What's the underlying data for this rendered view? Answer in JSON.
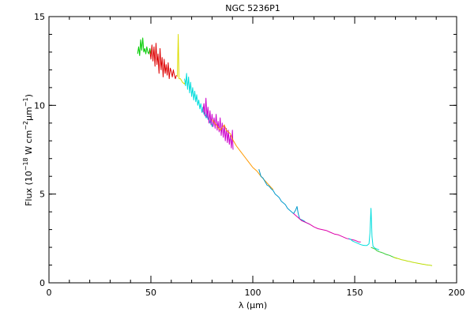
{
  "chart_data": {
    "type": "line",
    "title": "NGC 5236P1",
    "xlabel": "λ (μm)",
    "ylabel": {
      "prefix": "Flux (10",
      "exp1": "−18",
      "mid": " W cm",
      "exp2": "−2",
      "mid2": "μm",
      "exp3": "−1",
      "suffix": ")"
    },
    "xlim": [
      0,
      200
    ],
    "ylim": [
      0,
      15
    ],
    "x_ticks": [
      0,
      50,
      100,
      150,
      200
    ],
    "y_ticks": [
      0,
      5,
      10,
      15
    ],
    "x_minor_step": 10,
    "y_minor_step": 1,
    "grid": false,
    "series": [
      {
        "color": "#00cc00",
        "points": [
          [
            43.5,
            12.9
          ],
          [
            44.0,
            13.3
          ],
          [
            44.5,
            12.8
          ],
          [
            45.0,
            13.7
          ],
          [
            45.5,
            13.1
          ],
          [
            46.0,
            13.8
          ],
          [
            46.5,
            13.0
          ],
          [
            47.0,
            13.2
          ],
          [
            47.5,
            12.9
          ],
          [
            48.0,
            13.3
          ],
          [
            48.5,
            13.0
          ],
          [
            49.0,
            12.9
          ],
          [
            49.5,
            13.2
          ],
          [
            50.0,
            12.9
          ]
        ]
      },
      {
        "color": "#dd0000",
        "points": [
          [
            49.5,
            13.1
          ],
          [
            50.0,
            12.6
          ],
          [
            50.5,
            13.4
          ],
          [
            51.0,
            12.5
          ],
          [
            51.5,
            13.3
          ],
          [
            52.0,
            12.2
          ],
          [
            52.5,
            13.5
          ],
          [
            53.0,
            12.3
          ],
          [
            53.5,
            12.9
          ],
          [
            54.0,
            11.8
          ],
          [
            54.5,
            13.2
          ],
          [
            55.0,
            12.0
          ],
          [
            55.5,
            12.7
          ],
          [
            56.0,
            11.6
          ],
          [
            56.5,
            12.6
          ],
          [
            57.0,
            11.8
          ],
          [
            57.5,
            12.3
          ],
          [
            58.0,
            11.7
          ],
          [
            58.5,
            12.4
          ],
          [
            59.0,
            11.5
          ],
          [
            59.5,
            12.1
          ],
          [
            60.0,
            11.9
          ],
          [
            60.5,
            11.6
          ],
          [
            61.0,
            12.0
          ],
          [
            61.5,
            11.7
          ],
          [
            62.0,
            11.5
          ],
          [
            62.5,
            11.7
          ]
        ]
      },
      {
        "color": "#dddd00",
        "points": [
          [
            63.0,
            11.6
          ],
          [
            63.4,
            14.0
          ],
          [
            63.8,
            11.5
          ],
          [
            64.5,
            11.5
          ],
          [
            65.5,
            11.3
          ],
          [
            66.5,
            11.2
          ],
          [
            67.0,
            11.4
          ]
        ]
      },
      {
        "color": "#00dddd",
        "points": [
          [
            66.5,
            11.5
          ],
          [
            67.0,
            11.1
          ],
          [
            67.5,
            11.8
          ],
          [
            68.0,
            10.9
          ],
          [
            68.5,
            11.6
          ],
          [
            69.0,
            10.7
          ],
          [
            69.5,
            11.3
          ],
          [
            70.0,
            10.5
          ],
          [
            70.5,
            11.0
          ],
          [
            71.0,
            10.3
          ],
          [
            71.5,
            10.8
          ],
          [
            72.0,
            10.2
          ],
          [
            72.5,
            10.6
          ],
          [
            73.0,
            10.0
          ],
          [
            73.5,
            10.3
          ],
          [
            74.0,
            9.8
          ],
          [
            74.5,
            10.1
          ],
          [
            75.0,
            9.6
          ],
          [
            75.5,
            9.9
          ],
          [
            76.0,
            9.5
          ],
          [
            76.5,
            9.7
          ],
          [
            77.0,
            9.3
          ],
          [
            77.5,
            9.6
          ],
          [
            78.0,
            9.2
          ],
          [
            78.5,
            9.3
          ],
          [
            79.0,
            9.0
          ],
          [
            79.5,
            9.2
          ],
          [
            80.0,
            8.8
          ],
          [
            80.5,
            9.0
          ]
        ]
      },
      {
        "color": "#cc00cc",
        "points": [
          [
            75.5,
            9.6
          ],
          [
            76.0,
            10.1
          ],
          [
            76.5,
            9.4
          ],
          [
            77.0,
            10.4
          ],
          [
            77.5,
            9.3
          ],
          [
            78.0,
            9.9
          ],
          [
            78.5,
            9.0
          ],
          [
            79.0,
            9.7
          ],
          [
            79.5,
            8.9
          ],
          [
            80.0,
            9.5
          ],
          [
            80.5,
            8.8
          ],
          [
            81.0,
            9.3
          ],
          [
            81.5,
            8.7
          ],
          [
            82.0,
            9.5
          ],
          [
            82.5,
            8.6
          ],
          [
            83.0,
            9.1
          ],
          [
            83.5,
            8.5
          ],
          [
            84.0,
            9.3
          ],
          [
            84.5,
            8.3
          ],
          [
            85.0,
            9.0
          ],
          [
            85.5,
            8.2
          ],
          [
            86.0,
            8.9
          ],
          [
            86.5,
            8.0
          ],
          [
            87.0,
            8.7
          ],
          [
            87.5,
            7.9
          ],
          [
            88.0,
            8.6
          ],
          [
            88.5,
            7.8
          ],
          [
            89.0,
            8.3
          ],
          [
            89.5,
            7.6
          ],
          [
            90.0,
            8.6
          ],
          [
            90.3,
            7.5
          ]
        ]
      },
      {
        "color": "#ff9900",
        "points": [
          [
            80.0,
            9.2
          ],
          [
            82.0,
            8.9
          ],
          [
            84.0,
            8.6
          ],
          [
            86.0,
            8.9
          ],
          [
            87.0,
            8.6
          ],
          [
            89.0,
            8.4
          ],
          [
            90.0,
            8.1
          ],
          [
            92.0,
            7.7
          ],
          [
            94.0,
            7.4
          ],
          [
            96.0,
            7.1
          ],
          [
            98.0,
            6.8
          ],
          [
            100.0,
            6.5
          ],
          [
            102.0,
            6.3
          ],
          [
            104.0,
            6.0
          ],
          [
            106.0,
            5.75
          ],
          [
            108.0,
            5.5
          ],
          [
            110.0,
            5.25
          ]
        ]
      },
      {
        "color": "#0099cc",
        "points": [
          [
            103.0,
            6.4
          ],
          [
            104.0,
            6.0
          ],
          [
            105.0,
            5.9
          ],
          [
            106.0,
            5.7
          ],
          [
            107.0,
            5.5
          ],
          [
            108.0,
            5.45
          ],
          [
            109.0,
            5.3
          ],
          [
            110.0,
            5.2
          ],
          [
            111.0,
            5.0
          ],
          [
            112.0,
            4.9
          ],
          [
            113.0,
            4.8
          ],
          [
            114.0,
            4.6
          ],
          [
            115.0,
            4.5
          ],
          [
            116.0,
            4.4
          ],
          [
            117.0,
            4.2
          ],
          [
            118.0,
            4.1
          ],
          [
            119.0,
            4.0
          ],
          [
            120.0,
            3.9
          ],
          [
            121.0,
            4.1
          ],
          [
            121.7,
            4.3
          ],
          [
            122.3,
            3.9
          ],
          [
            123.0,
            3.6
          ],
          [
            124.0,
            3.55
          ],
          [
            125.0,
            3.5
          ],
          [
            126.0,
            3.4
          ],
          [
            127.0,
            3.35
          ],
          [
            128.0,
            3.3
          ]
        ]
      },
      {
        "color": "#dd00aa",
        "points": [
          [
            120.0,
            3.9
          ],
          [
            122.0,
            3.7
          ],
          [
            124.0,
            3.5
          ],
          [
            126.0,
            3.4
          ],
          [
            128.0,
            3.3
          ],
          [
            130.0,
            3.15
          ],
          [
            132.0,
            3.05
          ],
          [
            134.0,
            3.0
          ],
          [
            136.0,
            2.95
          ],
          [
            138.0,
            2.85
          ],
          [
            140.0,
            2.75
          ],
          [
            142.0,
            2.7
          ],
          [
            144.0,
            2.6
          ],
          [
            146.0,
            2.5
          ],
          [
            148.0,
            2.45
          ],
          [
            150.0,
            2.4
          ],
          [
            152.0,
            2.3
          ],
          [
            153.0,
            2.3
          ]
        ]
      },
      {
        "color": "#00dddd",
        "points": [
          [
            147.0,
            2.5
          ],
          [
            148.0,
            2.45
          ],
          [
            149.0,
            2.35
          ],
          [
            150.0,
            2.3
          ],
          [
            151.0,
            2.25
          ],
          [
            152.0,
            2.2
          ],
          [
            153.0,
            2.15
          ],
          [
            154.0,
            2.12
          ],
          [
            155.0,
            2.1
          ],
          [
            156.0,
            2.1
          ],
          [
            157.0,
            2.2
          ],
          [
            157.5,
            2.8
          ],
          [
            158.0,
            4.2
          ],
          [
            158.5,
            2.6
          ],
          [
            159.0,
            2.05
          ],
          [
            160.0,
            1.95
          ],
          [
            161.0,
            1.9
          ],
          [
            162.0,
            1.85
          ]
        ]
      },
      {
        "color": "#33cc33",
        "points": [
          [
            158.0,
            2.0
          ],
          [
            159.0,
            1.95
          ],
          [
            160.0,
            1.9
          ],
          [
            161.0,
            1.8
          ],
          [
            162.0,
            1.75
          ],
          [
            163.0,
            1.72
          ],
          [
            164.0,
            1.68
          ],
          [
            165.0,
            1.62
          ],
          [
            166.0,
            1.58
          ],
          [
            167.0,
            1.55
          ],
          [
            168.0,
            1.5
          ],
          [
            169.0,
            1.45
          ],
          [
            170.0,
            1.4
          ],
          [
            171.0,
            1.38
          ]
        ]
      },
      {
        "color": "#bbdd00",
        "points": [
          [
            169.0,
            1.45
          ],
          [
            170.0,
            1.4
          ],
          [
            171.0,
            1.37
          ],
          [
            172.0,
            1.34
          ],
          [
            173.0,
            1.3
          ],
          [
            174.0,
            1.28
          ],
          [
            175.0,
            1.25
          ],
          [
            176.0,
            1.22
          ],
          [
            177.0,
            1.2
          ],
          [
            178.0,
            1.17
          ],
          [
            179.0,
            1.15
          ],
          [
            180.0,
            1.12
          ],
          [
            181.0,
            1.1
          ],
          [
            182.0,
            1.08
          ],
          [
            183.0,
            1.06
          ],
          [
            184.0,
            1.04
          ],
          [
            185.0,
            1.02
          ],
          [
            186.0,
            1.0
          ],
          [
            187.0,
            0.99
          ],
          [
            188.0,
            0.97
          ]
        ]
      }
    ]
  }
}
